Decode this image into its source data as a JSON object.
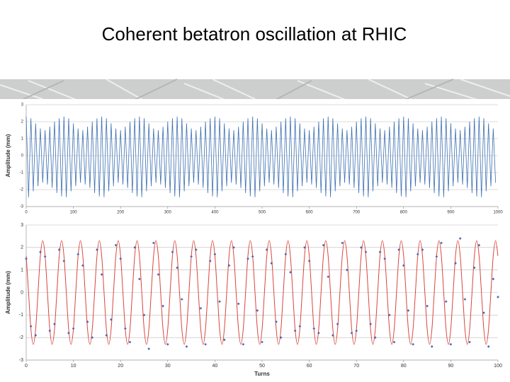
{
  "title": "Coherent betatron oscillation at RHIC",
  "chart_data": [
    {
      "type": "line",
      "y_label": "Amplitude (mm)",
      "x": [
        0,
        5,
        10,
        15,
        20,
        25,
        30,
        35,
        40,
        45,
        50,
        55,
        60,
        65,
        70,
        75,
        80,
        85,
        90,
        95,
        100,
        105,
        110,
        115,
        120,
        125,
        130,
        135,
        140,
        145,
        150,
        155,
        160,
        165,
        170,
        175,
        180,
        185,
        190,
        195,
        200,
        205,
        210,
        215,
        220,
        225,
        230,
        235,
        240,
        245,
        250,
        255,
        260,
        265,
        270,
        275,
        280,
        285,
        290,
        295,
        300,
        305,
        310,
        315,
        320,
        325,
        330,
        335,
        340,
        345,
        350,
        355,
        360,
        365,
        370,
        375,
        380,
        385,
        390,
        395,
        400,
        405,
        410,
        415,
        420,
        425,
        430,
        435,
        440,
        445,
        450,
        455,
        460,
        465,
        470,
        475,
        480,
        485,
        490,
        495,
        500,
        505,
        510,
        515,
        520,
        525,
        530,
        535,
        540,
        545,
        550,
        555,
        560,
        565,
        570,
        575,
        580,
        585,
        590,
        595,
        600,
        605,
        610,
        615,
        620,
        625,
        630,
        635,
        640,
        645,
        650,
        655,
        660,
        665,
        670,
        675,
        680,
        685,
        690,
        695,
        700,
        705,
        710,
        715,
        720,
        725,
        730,
        735,
        740,
        745,
        750,
        755,
        760,
        765,
        770,
        775,
        780,
        785,
        790,
        795,
        800,
        805,
        810,
        815,
        820,
        825,
        830,
        835,
        840,
        845,
        850,
        855,
        860,
        865,
        870,
        875,
        880,
        885,
        890,
        895,
        900,
        905,
        910,
        915,
        920,
        925,
        930,
        935,
        940,
        945,
        950,
        955,
        960,
        965,
        970,
        975,
        980,
        985,
        990,
        995
      ],
      "series": [
        {
          "color": "#3d6fb1",
          "values": [
            2.3,
            -2.45,
            2.2,
            -2.1,
            1.9,
            -1.8,
            1.6,
            -1.6,
            1.5,
            -1.7,
            1.7,
            -1.9,
            2.0,
            -2.2,
            2.2,
            -2.4,
            2.3,
            -2.45,
            2.2,
            -2.1,
            1.9,
            -1.8,
            1.6,
            -1.6,
            1.5,
            -1.7,
            1.7,
            -1.9,
            2.0,
            -2.2,
            2.2,
            -2.4,
            2.3,
            -2.45,
            2.2,
            -2.1,
            1.9,
            -1.8,
            1.6,
            -1.6,
            1.5,
            -1.7,
            1.7,
            -1.9,
            2.0,
            -2.2,
            2.2,
            -2.4,
            2.3,
            -2.45,
            2.2,
            -2.1,
            1.9,
            -1.8,
            1.6,
            -1.6,
            1.5,
            -1.7,
            1.7,
            -1.9,
            2.0,
            -2.2,
            2.2,
            -2.4,
            2.3,
            -2.45,
            2.2,
            -2.1,
            1.9,
            -1.8,
            1.6,
            -1.6,
            1.5,
            -1.7,
            1.7,
            -1.9,
            2.0,
            -2.2,
            2.2,
            -2.4,
            2.3,
            -2.45,
            2.2,
            -2.1,
            1.9,
            -1.8,
            1.6,
            -1.6,
            1.5,
            -1.7,
            1.7,
            -1.9,
            2.0,
            -2.2,
            2.2,
            -2.4,
            2.3,
            -2.45,
            2.2,
            -2.1,
            1.9,
            -1.8,
            1.6,
            -1.6,
            1.5,
            -1.7,
            1.7,
            -1.9,
            2.0,
            -2.2,
            2.2,
            -2.4,
            2.3,
            -2.45,
            2.2,
            -2.1,
            1.9,
            -1.8,
            1.6,
            -1.6,
            1.5,
            -1.7,
            1.7,
            -1.9,
            2.0,
            -2.2,
            2.2,
            -2.4,
            2.3,
            -2.45,
            2.2,
            -2.1,
            1.9,
            -1.8,
            1.6,
            -1.6,
            1.5,
            -1.7,
            1.7,
            -1.9,
            2.0,
            -2.2,
            2.2,
            -2.4,
            2.3,
            -2.45,
            2.2,
            -2.1,
            1.9,
            -1.8,
            1.6,
            -1.6,
            1.5,
            -1.7,
            1.7,
            -1.9,
            2.0,
            -2.2,
            2.2,
            -2.4,
            2.3,
            -2.45,
            2.2,
            -2.1,
            1.9,
            -1.8,
            1.6,
            -1.6,
            1.5,
            -1.7,
            1.7,
            -1.9,
            2.0,
            -2.2,
            2.2,
            -2.4,
            2.3,
            -2.45,
            2.2,
            -2.1,
            1.9,
            -1.8,
            1.6,
            -1.6,
            1.5,
            -1.7,
            1.7,
            -1.9,
            2.0,
            -2.2,
            2.2,
            -2.4,
            2.3,
            -2.45,
            2.2,
            -2.1,
            1.9,
            -1.8,
            1.6,
            -1.6
          ]
        }
      ],
      "xlim": [
        0,
        1000
      ],
      "xticks": [
        0,
        100,
        200,
        300,
        400,
        500,
        600,
        700,
        800,
        900,
        1000
      ],
      "ylim": [
        -3,
        3
      ],
      "yticks": [
        -3,
        -2,
        -1,
        0,
        1,
        2,
        3
      ],
      "grid": true
    },
    {
      "type": "line",
      "y_label": "Amplitude (mm)",
      "x_label": "Turns",
      "x": [
        0,
        0.5,
        1,
        1.5,
        2,
        2.5,
        3,
        3.5,
        4,
        4.5,
        5,
        5.5,
        6,
        6.5,
        7,
        7.5,
        8,
        8.5,
        9,
        9.5,
        10,
        10.5,
        11,
        11.5,
        12,
        12.5,
        13,
        13.5,
        14,
        14.5,
        15,
        15.5,
        16,
        16.5,
        17,
        17.5,
        18,
        18.5,
        19,
        19.5,
        20,
        20.5,
        21,
        21.5,
        22,
        22.5,
        23,
        23.5,
        24,
        24.5,
        25,
        25.5,
        26,
        26.5,
        27,
        27.5,
        28,
        28.5,
        29,
        29.5,
        30,
        30.5,
        31,
        31.5,
        32,
        32.5,
        33,
        33.5,
        34,
        34.5,
        35,
        35.5,
        36,
        36.5,
        37,
        37.5,
        38,
        38.5,
        39,
        39.5,
        40,
        40.5,
        41,
        41.5,
        42,
        42.5,
        43,
        43.5,
        44,
        44.5,
        45,
        45.5,
        46,
        46.5,
        47,
        47.5,
        48,
        48.5,
        49,
        49.5,
        50,
        50.5,
        51,
        51.5,
        52,
        52.5,
        53,
        53.5,
        54,
        54.5,
        55,
        55.5,
        56,
        56.5,
        57,
        57.5,
        58,
        58.5,
        59,
        59.5,
        60,
        60.5,
        61,
        61.5,
        62,
        62.5,
        63,
        63.5,
        64,
        64.5,
        65,
        65.5,
        66,
        66.5,
        67,
        67.5,
        68,
        68.5,
        69,
        69.5,
        70,
        70.5,
        71,
        71.5,
        72,
        72.5,
        73,
        73.5,
        74,
        74.5,
        75,
        75.5,
        76,
        76.5,
        77,
        77.5,
        78,
        78.5,
        79,
        79.5,
        80,
        80.5,
        81,
        81.5,
        82,
        82.5,
        83,
        83.5,
        84,
        84.5,
        85,
        85.5,
        86,
        86.5,
        87,
        87.5,
        88,
        88.5,
        89,
        89.5,
        90,
        90.5,
        91,
        91.5,
        92,
        92.5,
        93,
        93.5,
        94,
        94.5,
        95,
        95.5,
        96,
        96.5,
        97,
        97.5,
        98,
        98.5,
        99,
        99.5,
        100
      ],
      "series": [
        {
          "color": "#d8463c",
          "mode": "line",
          "smooth": true,
          "values": [
            1.63,
            0,
            -1.63,
            -2.3,
            -1.63,
            0,
            1.63,
            2.3,
            1.63,
            0,
            -1.63,
            -2.3,
            -1.63,
            0,
            1.63,
            2.3,
            1.63,
            0,
            -1.63,
            -2.3,
            -1.63,
            0,
            1.63,
            2.3,
            1.63,
            0,
            -1.63,
            -2.3,
            -1.63,
            0,
            1.63,
            2.3,
            1.63,
            0,
            -1.63,
            -2.3,
            -1.63,
            0,
            1.63,
            2.3,
            1.63,
            0,
            -1.63,
            -2.3,
            -1.63,
            0,
            1.63,
            2.3,
            1.63,
            0,
            -1.63,
            -2.3,
            -1.63,
            0,
            1.63,
            2.3,
            1.63,
            0,
            -1.63,
            -2.3,
            -1.63,
            0,
            1.63,
            2.3,
            1.63,
            0,
            -1.63,
            -2.3,
            -1.63,
            0,
            1.63,
            2.3,
            1.63,
            0,
            -1.63,
            -2.3,
            -1.63,
            0,
            1.63,
            2.3,
            1.63,
            0,
            -1.63,
            -2.3,
            -1.63,
            0,
            1.63,
            2.3,
            1.63,
            0,
            -1.63,
            -2.3,
            -1.63,
            0,
            1.63,
            2.3,
            1.63,
            0,
            -1.63,
            -2.3,
            -1.63,
            0,
            1.63,
            2.3,
            1.63,
            0,
            -1.63,
            -2.3,
            -1.63,
            0,
            1.63,
            2.3,
            1.63,
            0,
            -1.63,
            -2.3,
            -1.63,
            0,
            1.63,
            2.3,
            1.63,
            0,
            -1.63,
            -2.3,
            -1.63,
            0,
            1.63,
            2.3,
            1.63,
            0,
            -1.63,
            -2.3,
            -1.63,
            0,
            1.63,
            2.3,
            1.63,
            0,
            -1.63,
            -2.3,
            -1.63,
            0,
            1.63,
            2.3,
            1.63,
            0,
            -1.63,
            -2.3,
            -1.63,
            0,
            1.63,
            2.3,
            1.63,
            0,
            -1.63,
            -2.3,
            -1.63,
            0,
            1.63,
            2.3,
            1.63,
            0,
            -1.63,
            -2.3,
            -1.63,
            0,
            1.63,
            2.3,
            1.63,
            0,
            -1.63,
            -2.3,
            -1.63,
            0,
            1.63,
            2.3,
            1.63,
            0,
            -1.63,
            -2.3,
            -1.63,
            0,
            1.63,
            2.3,
            1.63,
            0,
            -1.63,
            -2.3,
            -1.63,
            0,
            1.63,
            2.3,
            1.63,
            0,
            -1.63,
            -2.3,
            -1.63,
            0,
            1.63,
            2.3,
            1.63
          ]
        },
        {
          "color": "#4a67b0",
          "mode": "markers",
          "values": [
            1.5,
            null,
            -1.5,
            null,
            -1.9,
            null,
            1.8,
            null,
            1.6,
            null,
            -1.7,
            null,
            -1.4,
            null,
            1.9,
            null,
            1.4,
            null,
            -1.8,
            null,
            -1.6,
            null,
            1.7,
            null,
            1.2,
            null,
            -1.3,
            null,
            -2.0,
            null,
            1.9,
            null,
            0.8,
            null,
            -1.9,
            null,
            -1.2,
            null,
            2.1,
            null,
            1.5,
            null,
            -1.6,
            null,
            -2.2,
            null,
            2.0,
            null,
            0.6,
            null,
            -1.0,
            null,
            -2.5,
            null,
            2.2,
            null,
            0.8,
            null,
            -0.6,
            null,
            -2.3,
            null,
            1.8,
            null,
            1.1,
            null,
            -0.3,
            null,
            -2.4,
            null,
            1.6,
            null,
            1.9,
            null,
            -0.7,
            null,
            -2.3,
            null,
            1.4,
            null,
            1.7,
            null,
            -0.4,
            null,
            -2.1,
            null,
            1.2,
            null,
            2.0,
            null,
            -0.5,
            null,
            -2.3,
            null,
            1.5,
            null,
            1.6,
            null,
            -0.8,
            null,
            -2.2,
            null,
            1.9,
            null,
            1.3,
            null,
            -1.3,
            null,
            -2.0,
            null,
            1.7,
            null,
            0.9,
            null,
            -1.7,
            null,
            -1.5,
            null,
            2.0,
            null,
            1.4,
            null,
            -1.6,
            null,
            -1.8,
            null,
            2.1,
            null,
            0.7,
            null,
            -1.9,
            null,
            -1.4,
            null,
            2.2,
            null,
            1.0,
            null,
            -1.8,
            null,
            -1.7,
            null,
            2.0,
            null,
            1.8,
            null,
            -1.4,
            null,
            -2.0,
            null,
            1.8,
            null,
            1.5,
            null,
            -1.0,
            null,
            -2.2,
            null,
            1.9,
            null,
            1.2,
            null,
            -0.8,
            null,
            -2.3,
            null,
            1.7,
            null,
            1.9,
            null,
            -0.6,
            null,
            -2.4,
            null,
            1.6,
            null,
            2.2,
            null,
            -0.4,
            null,
            -2.3,
            null,
            1.3,
            null,
            2.4,
            null,
            -0.3,
            null,
            -2.2,
            null,
            1.1,
            null,
            2.1,
            null,
            -0.9,
            null,
            -2.4,
            null,
            0.6,
            null,
            -0.2
          ]
        }
      ],
      "xlim": [
        0,
        100
      ],
      "xticks": [
        0,
        10,
        20,
        30,
        40,
        50,
        60,
        70,
        80,
        90,
        100
      ],
      "ylim": [
        -3,
        3
      ],
      "yticks": [
        -3,
        -2,
        -1,
        0,
        1,
        2,
        3
      ],
      "grid": true
    }
  ]
}
